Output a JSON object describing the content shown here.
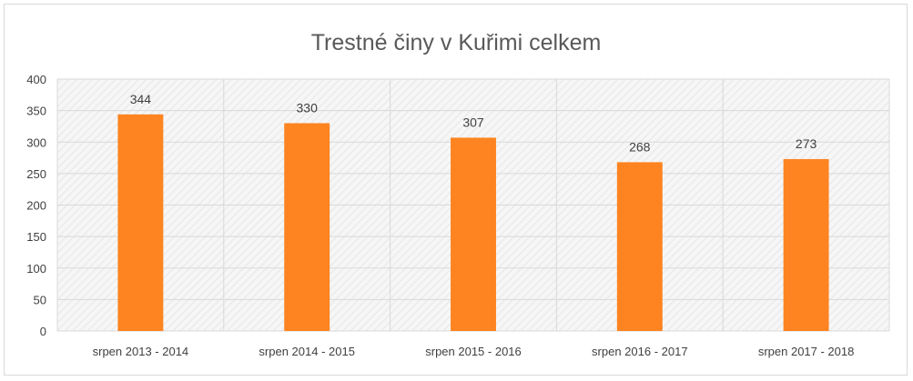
{
  "chart_data": {
    "type": "bar",
    "title": "Trestné činy v Kuřimi celkem",
    "categories": [
      "srpen 2013 - 2014",
      "srpen 2014 - 2015",
      "srpen 2015 - 2016",
      "srpen 2016 - 2017",
      "srpen 2017 - 2018"
    ],
    "values": [
      344,
      330,
      307,
      268,
      273
    ],
    "data_labels": [
      "344",
      "330",
      "307",
      "268",
      "273"
    ],
    "y_ticks": [
      "0",
      "50",
      "100",
      "150",
      "200",
      "250",
      "300",
      "350",
      "400"
    ],
    "ylim": [
      0,
      400
    ],
    "xlabel": "",
    "ylabel": "",
    "grid": true,
    "legend": "none",
    "bar_color": "#fd8420",
    "plot_background": "#f2f2f2 hatched"
  }
}
